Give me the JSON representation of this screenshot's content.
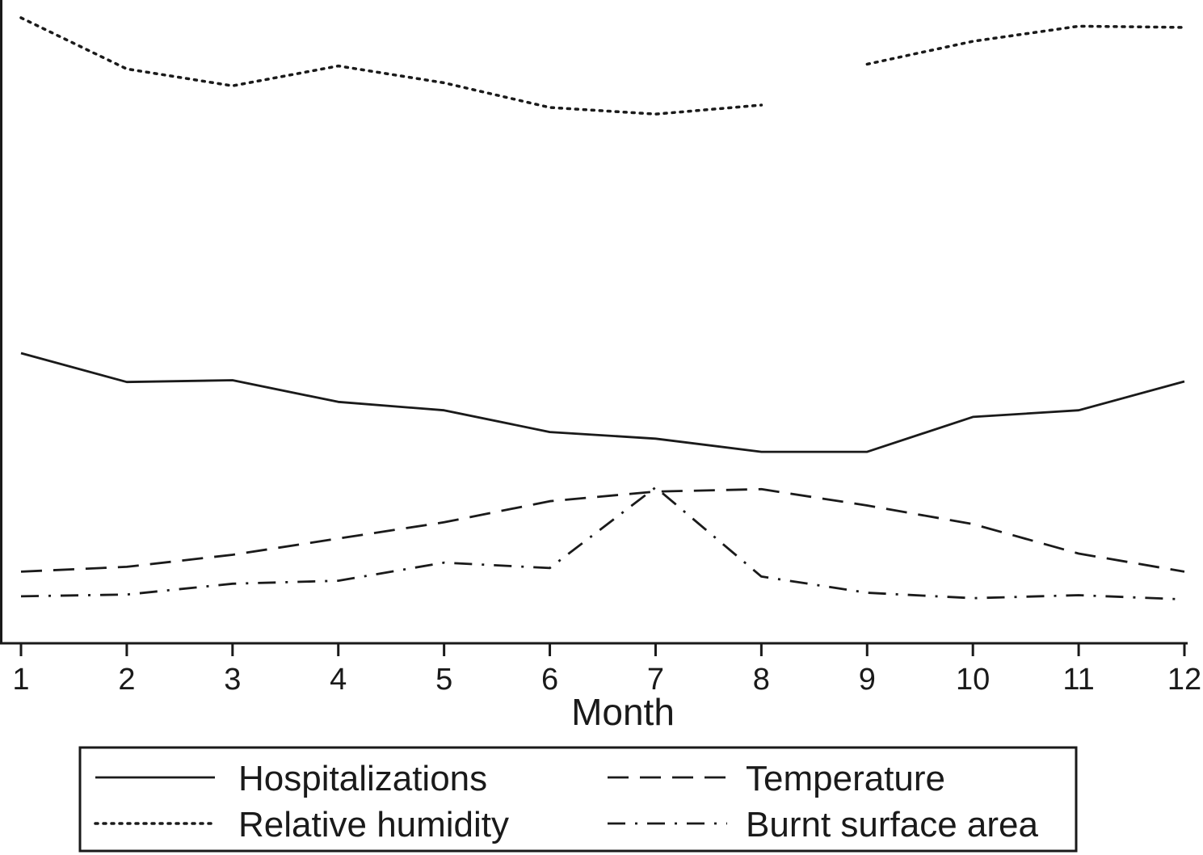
{
  "chart_data": {
    "type": "line",
    "xlabel": "Month",
    "x": [
      1,
      2,
      3,
      4,
      5,
      6,
      7,
      8,
      9,
      10,
      11,
      12
    ],
    "xlim": [
      1,
      12
    ],
    "ylim": [
      0,
      100
    ],
    "grid": false,
    "legend_position": "bottom",
    "series": [
      {
        "name": "Hospitalizations",
        "style": "solid",
        "values": [
          44.3,
          39.5,
          39.8,
          36.2,
          34.8,
          31.2,
          30.1,
          27.9,
          27.9,
          33.7,
          34.8,
          39.6
        ],
        "gaps_after": []
      },
      {
        "name": "Temperature",
        "style": "dashed",
        "values": [
          8.0,
          8.8,
          10.8,
          13.5,
          16.2,
          19.7,
          21.3,
          21.7,
          19.0,
          15.9,
          11.0,
          8.0
        ],
        "gaps_after": []
      },
      {
        "name": "Relative humidity",
        "style": "dotted",
        "values": [
          100.0,
          91.5,
          88.7,
          92.0,
          89.2,
          85.1,
          84.0,
          85.5,
          92.3,
          96.1,
          98.6,
          98.4
        ],
        "gaps_after": [
          8
        ]
      },
      {
        "name": "Burnt surface area",
        "style": "dashdot",
        "values": [
          3.9,
          4.2,
          6.0,
          6.5,
          9.5,
          8.6,
          22.0,
          7.2,
          4.5,
          3.6,
          4.1,
          3.4
        ],
        "gaps_after": []
      }
    ]
  },
  "colors": {
    "line": "#1a1a1a",
    "background": "#ffffff"
  }
}
